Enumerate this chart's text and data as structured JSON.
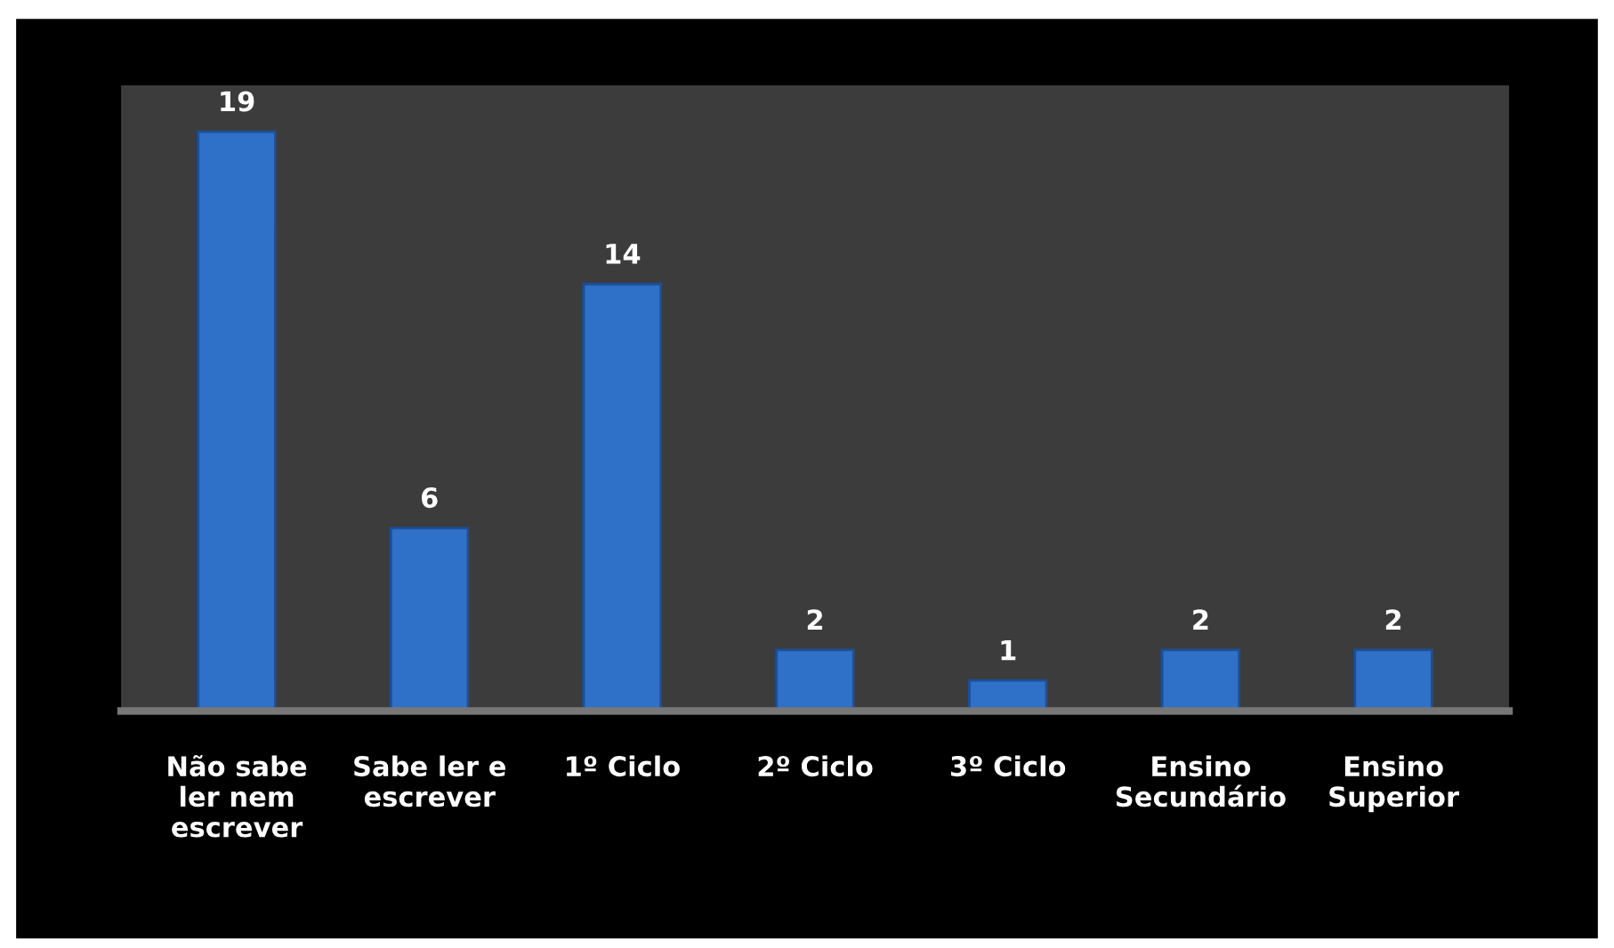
{
  "chart_data": {
    "type": "bar",
    "categories": [
      "Não sabe\nler nem\nescrever",
      "Sabe ler e\nescrever",
      "1º Ciclo",
      "2º Ciclo",
      "3º Ciclo",
      "Ensino\nSecundário",
      "Ensino\nSuperior"
    ],
    "values": [
      19,
      6,
      14,
      2,
      1,
      2,
      2
    ],
    "color": "#2f70c8",
    "data_labels": true,
    "grid": false,
    "legend": false
  }
}
